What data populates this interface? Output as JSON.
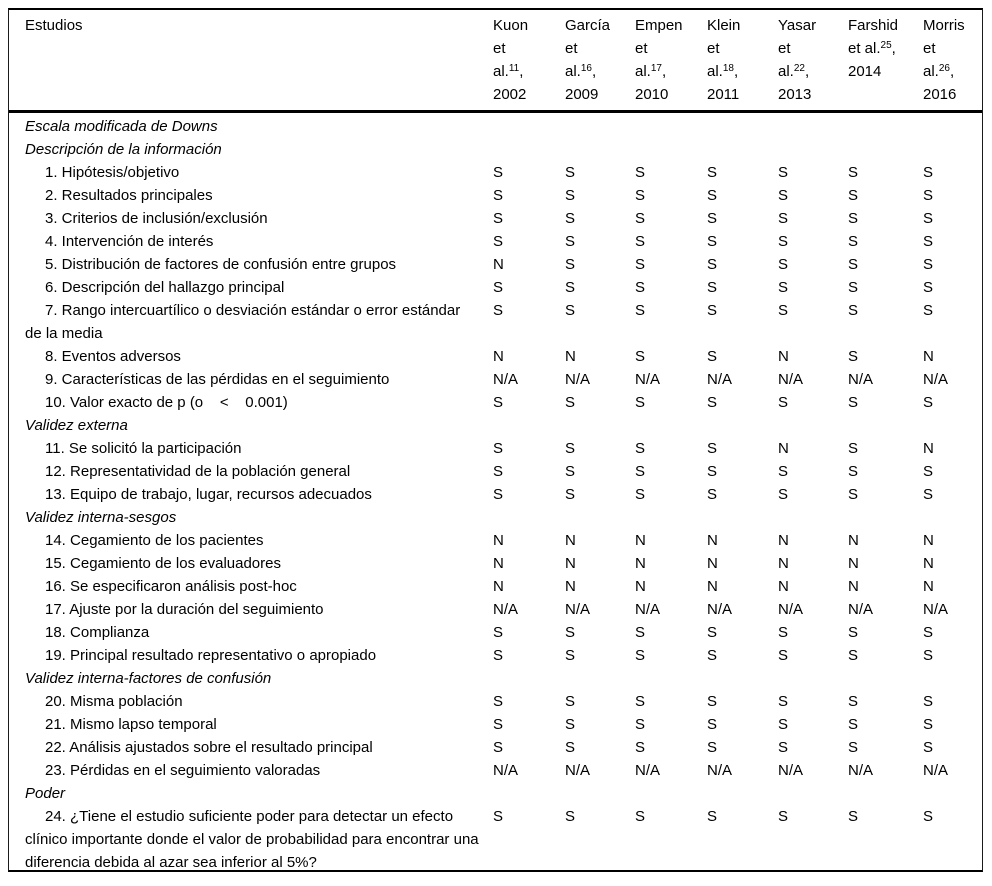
{
  "table": {
    "corner_label": "Estudios",
    "columns": [
      {
        "id": "kuon-2002",
        "lines": [
          "Kuon",
          "et",
          "al.^11^,",
          "2002"
        ]
      },
      {
        "id": "garcia-2009",
        "lines": [
          "García",
          "et",
          "al.^16^,",
          "2009"
        ]
      },
      {
        "id": "empen-2010",
        "lines": [
          "Empen",
          "et",
          "al.^17^,",
          "2010"
        ]
      },
      {
        "id": "klein-2011",
        "lines": [
          "Klein",
          "et",
          "al.^18^,",
          "2011"
        ]
      },
      {
        "id": "yasar-2013",
        "lines": [
          "Yasar",
          "et",
          "al.^22^,",
          "2013"
        ]
      },
      {
        "id": "farshid-2014",
        "lines": [
          "Farshid",
          "et al.^25^,",
          "2014"
        ]
      },
      {
        "id": "morris-2016",
        "lines": [
          "Morris",
          "et",
          "al.^26^,",
          "2016"
        ]
      }
    ],
    "rows": [
      {
        "type": "section",
        "label": "Escala modificada de Downs"
      },
      {
        "type": "section",
        "label": "Descripción de la información"
      },
      {
        "type": "item",
        "label": "1. Hipótesis/objetivo",
        "values": [
          "S",
          "S",
          "S",
          "S",
          "S",
          "S",
          "S"
        ]
      },
      {
        "type": "item",
        "label": "2. Resultados principales",
        "values": [
          "S",
          "S",
          "S",
          "S",
          "S",
          "S",
          "S"
        ]
      },
      {
        "type": "item",
        "label": "3. Criterios de inclusión/exclusión",
        "values": [
          "S",
          "S",
          "S",
          "S",
          "S",
          "S",
          "S"
        ]
      },
      {
        "type": "item",
        "label": "4. Intervención de interés",
        "values": [
          "S",
          "S",
          "S",
          "S",
          "S",
          "S",
          "S"
        ]
      },
      {
        "type": "item",
        "label": "5. Distribución de factores de confusión entre grupos",
        "values": [
          "N",
          "S",
          "S",
          "S",
          "S",
          "S",
          "S"
        ]
      },
      {
        "type": "item",
        "label": "6. Descripción del hallazgo principal",
        "values": [
          "S",
          "S",
          "S",
          "S",
          "S",
          "S",
          "S"
        ]
      },
      {
        "type": "item",
        "label": "7. Rango intercuartílico o desviación estándar o error estándar de la media",
        "values": [
          "S",
          "S",
          "S",
          "S",
          "S",
          "S",
          "S"
        ]
      },
      {
        "type": "item",
        "label": "8. Eventos adversos",
        "values": [
          "N",
          "N",
          "S",
          "S",
          "N",
          "S",
          "N"
        ]
      },
      {
        "type": "item",
        "label": "9. Características de las pérdidas  en el seguimiento",
        "values": [
          "N/A",
          "N/A",
          "N/A",
          "N/A",
          "N/A",
          "N/A",
          "N/A"
        ]
      },
      {
        "type": "item",
        "label": "10. Valor exacto de p (o    <    0.001)",
        "values": [
          "S",
          "S",
          "S",
          "S",
          "S",
          "S",
          "S"
        ]
      },
      {
        "type": "section",
        "label": "Validez externa"
      },
      {
        "type": "item",
        "label": "11. Se solicitó la participación",
        "values": [
          "S",
          "S",
          "S",
          "S",
          "N",
          "S",
          "N"
        ]
      },
      {
        "type": "item",
        "label": "12. Representatividad de la población general",
        "values": [
          "S",
          "S",
          "S",
          "S",
          "S",
          "S",
          "S"
        ]
      },
      {
        "type": "item",
        "label": "13. Equipo de trabajo, lugar, recursos adecuados",
        "values": [
          "S",
          "S",
          "S",
          "S",
          "S",
          "S",
          "S"
        ]
      },
      {
        "type": "section",
        "label": "Validez interna-sesgos"
      },
      {
        "type": "item",
        "label": "14. Cegamiento de los pacientes",
        "values": [
          "N",
          "N",
          "N",
          "N",
          "N",
          "N",
          "N"
        ]
      },
      {
        "type": "item",
        "label": "15. Cegamiento de los evaluadores",
        "values": [
          "N",
          "N",
          "N",
          "N",
          "N",
          "N",
          "N"
        ]
      },
      {
        "type": "item",
        "label": "16. Se especificaron análisis post-hoc",
        "values": [
          "N",
          "N",
          "N",
          "N",
          "N",
          "N",
          "N"
        ]
      },
      {
        "type": "item",
        "label": "17. Ajuste por la duración del seguimiento",
        "values": [
          "N/A",
          "N/A",
          "N/A",
          "N/A",
          "N/A",
          "N/A",
          "N/A"
        ]
      },
      {
        "type": "item",
        "label": "18. Complianza",
        "values": [
          "S",
          "S",
          "S",
          "S",
          "S",
          "S",
          "S"
        ]
      },
      {
        "type": "item",
        "label": "19. Principal resultado representativo o apropiado",
        "values": [
          "S",
          "S",
          "S",
          "S",
          "S",
          "S",
          "S"
        ]
      },
      {
        "type": "section",
        "label": "Validez interna-factores de confusión"
      },
      {
        "type": "item",
        "label": "20. Misma población",
        "values": [
          "S",
          "S",
          "S",
          "S",
          "S",
          "S",
          "S"
        ]
      },
      {
        "type": "item",
        "label": "21. Mismo lapso temporal",
        "values": [
          "S",
          "S",
          "S",
          "S",
          "S",
          "S",
          "S"
        ]
      },
      {
        "type": "item",
        "label": "22. Análisis ajustados sobre el resultado principal",
        "values": [
          "S",
          "S",
          "S",
          "S",
          "S",
          "S",
          "S"
        ]
      },
      {
        "type": "item",
        "label": "23. Pérdidas en el seguimiento valoradas",
        "values": [
          "N/A",
          "N/A",
          "N/A",
          "N/A",
          "N/A",
          "N/A",
          "N/A"
        ]
      },
      {
        "type": "section",
        "label": "Poder"
      },
      {
        "type": "item",
        "label": "24. ¿Tiene el estudio suficiente poder para detectar un efecto clínico importante donde el valor de probabilidad para encontrar una diferencia debida al azar sea inferior al 5%?",
        "values": [
          "S",
          "S",
          "S",
          "S",
          "S",
          "S",
          "S"
        ]
      }
    ]
  }
}
